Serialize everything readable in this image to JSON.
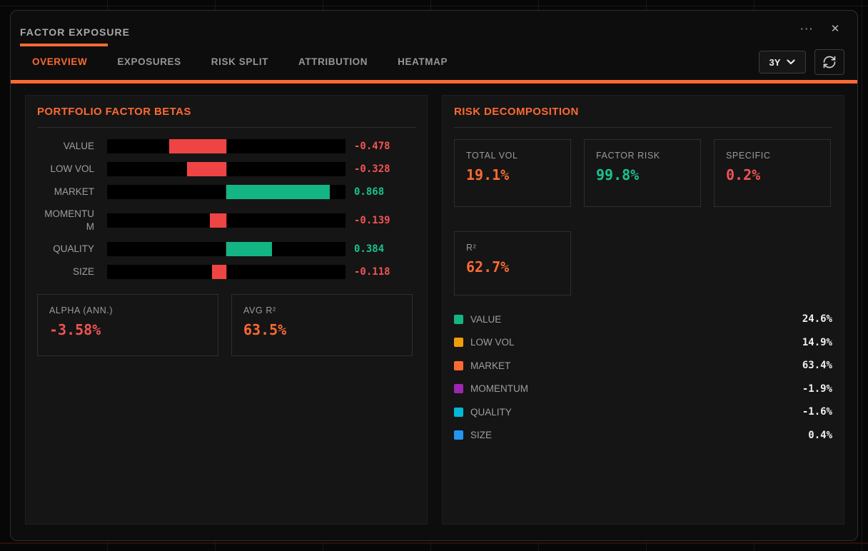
{
  "colors": {
    "accent": "#fb6a33",
    "red_bar": "#ef4444",
    "green_bar": "#12b583",
    "red_text": "#f15353",
    "green_text": "#19c28f",
    "white_text": "#f0f0f0"
  },
  "window": {
    "title": "FACTOR EXPOSURE",
    "more_icon": "···",
    "close_icon": "✕"
  },
  "tabs": [
    {
      "label": "OVERVIEW",
      "active": true
    },
    {
      "label": "EXPOSURES",
      "active": false
    },
    {
      "label": "RISK SPLIT",
      "active": false
    },
    {
      "label": "ATTRIBUTION",
      "active": false
    },
    {
      "label": "HEATMAP",
      "active": false
    }
  ],
  "controls": {
    "period_value": "3Y"
  },
  "betas_panel": {
    "title": "PORTFOLIO FACTOR BETAS",
    "stats": [
      {
        "label": "ALPHA (ANN.)",
        "value": "-3.58%",
        "color": "red_text"
      },
      {
        "label": "AVG R²",
        "value": "63.5%",
        "color": "accent"
      }
    ]
  },
  "risk_panel": {
    "title": "RISK DECOMPOSITION",
    "stats": [
      {
        "label": "TOTAL VOL",
        "value": "19.1%",
        "color": "accent"
      },
      {
        "label": "FACTOR RISK",
        "value": "99.8%",
        "color": "green_text"
      },
      {
        "label": "SPECIFIC",
        "value": "0.2%",
        "color": "red_text"
      },
      {
        "label": "R²",
        "value": "62.7%",
        "color": "accent"
      }
    ]
  },
  "chart_data": [
    {
      "type": "bar",
      "title": "PORTFOLIO FACTOR BETAS",
      "orientation": "horizontal",
      "categories": [
        "VALUE",
        "LOW VOL",
        "MARKET",
        "MOMENTUM",
        "QUALITY",
        "SIZE"
      ],
      "values": [
        -0.478,
        -0.328,
        0.868,
        -0.139,
        0.384,
        -0.118
      ],
      "value_labels": [
        "-0.478",
        "-0.328",
        "0.868",
        "-0.139",
        "0.384",
        "-0.118"
      ],
      "xlim": [
        -1,
        1
      ],
      "baseline": 0,
      "grid": false,
      "negative_color": "#ef4444",
      "positive_color": "#12b583"
    },
    {
      "type": "table",
      "title": "RISK DECOMPOSITION — FACTOR CONTRIBUTIONS",
      "categories": [
        "VALUE",
        "LOW VOL",
        "MARKET",
        "MOMENTUM",
        "QUALITY",
        "SIZE"
      ],
      "values": [
        24.6,
        14.9,
        63.4,
        -1.9,
        -1.6,
        0.4
      ],
      "value_labels": [
        "24.6%",
        "14.9%",
        "63.4%",
        "-1.9%",
        "-1.6%",
        "0.4%"
      ],
      "swatch_colors": [
        "#12b583",
        "#f09d09",
        "#fb6a33",
        "#9c27b0",
        "#06b6d4",
        "#2196f3"
      ],
      "legend_position": "left"
    }
  ]
}
